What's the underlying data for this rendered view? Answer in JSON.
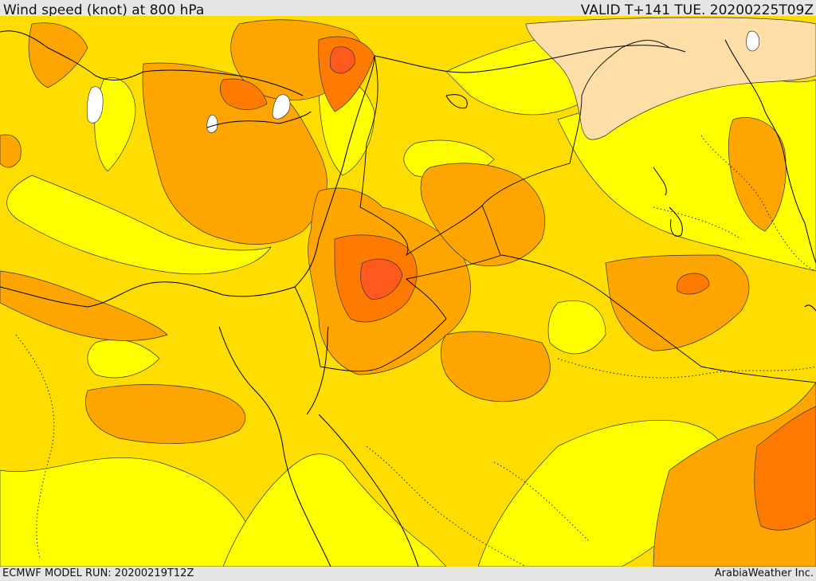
{
  "header": {
    "title": "Wind speed (knot) at 800 hPa",
    "valid": "VALID T+141 TUE. 20200225T09Z"
  },
  "footer": {
    "model_run": "ECMWF MODEL RUN: 20200219T12Z",
    "credit": "ArabiaWeather Inc."
  },
  "colors": {
    "band_10_15": "#ffff00",
    "band_15_20": "#ffdd00",
    "band_20_25": "#ffa500",
    "band_25_30": "#ff7a00",
    "band_30_35": "#ff5a1e",
    "calm_light": "#ffdea8",
    "calm": "#ffffff",
    "coast": "#000000"
  }
}
